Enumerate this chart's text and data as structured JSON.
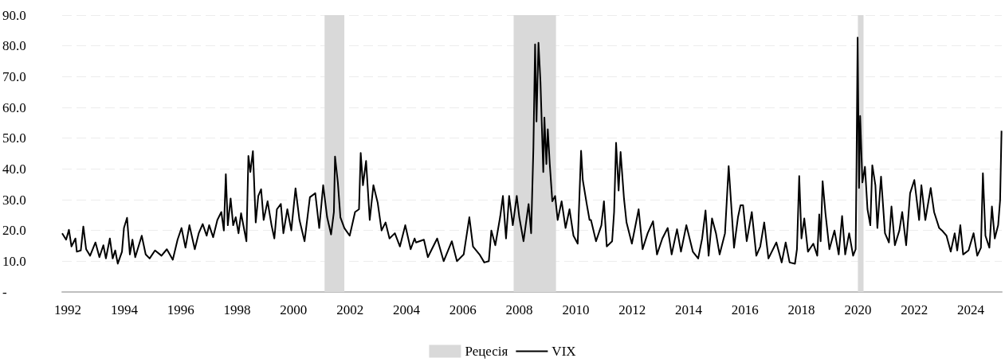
{
  "chart_data": {
    "type": "line",
    "x": [
      1991.8,
      1991.94,
      1992.04,
      1992.13,
      1992.27,
      1992.32,
      1992.46,
      1992.55,
      1992.65,
      1992.79,
      1992.98,
      1993.12,
      1993.26,
      1993.35,
      1993.49,
      1993.59,
      1993.68,
      1993.77,
      1993.92,
      1993.99,
      1994.1,
      1994.2,
      1994.29,
      1994.39,
      1994.62,
      1994.76,
      1994.9,
      1995.09,
      1995.32,
      1995.51,
      1995.72,
      1995.89,
      1996.03,
      1996.17,
      1996.31,
      1996.5,
      1996.64,
      1996.78,
      1996.92,
      1997.01,
      1997.15,
      1997.3,
      1997.44,
      1997.53,
      1997.6,
      1997.67,
      1997.77,
      1997.86,
      1997.95,
      1998.05,
      1998.14,
      1998.33,
      1998.4,
      1998.47,
      1998.56,
      1998.66,
      1998.75,
      1998.85,
      1998.94,
      1999.08,
      1999.22,
      1999.32,
      1999.41,
      1999.55,
      1999.64,
      1999.78,
      1999.92,
      2000.07,
      2000.21,
      2000.39,
      2000.58,
      2000.77,
      2000.91,
      2001.05,
      2001.19,
      2001.33,
      2001.43,
      2001.47,
      2001.57,
      2001.66,
      2001.8,
      2001.99,
      2002.18,
      2002.32,
      2002.38,
      2002.46,
      2002.57,
      2002.7,
      2002.83,
      2002.98,
      2003.12,
      2003.26,
      2003.4,
      2003.59,
      2003.77,
      2003.96,
      2004.15,
      2004.29,
      2004.34,
      2004.62,
      2004.76,
      2005.09,
      2005.32,
      2005.61,
      2005.79,
      2006.03,
      2006.23,
      2006.36,
      2006.59,
      2006.76,
      2006.92,
      2007.01,
      2007.15,
      2007.32,
      2007.42,
      2007.53,
      2007.64,
      2007.77,
      2007.91,
      2008.0,
      2008.15,
      2008.33,
      2008.42,
      2008.5,
      2008.56,
      2008.61,
      2008.68,
      2008.75,
      2008.85,
      2008.89,
      2008.96,
      2009.01,
      2009.08,
      2009.17,
      2009.27,
      2009.36,
      2009.5,
      2009.64,
      2009.78,
      2009.92,
      2010.07,
      2010.19,
      2010.25,
      2010.39,
      2010.49,
      2010.54,
      2010.72,
      2010.91,
      2011.0,
      2011.1,
      2011.29,
      2011.36,
      2011.43,
      2011.52,
      2011.59,
      2011.71,
      2011.8,
      2011.99,
      2012.23,
      2012.37,
      2012.55,
      2012.74,
      2012.88,
      2013.07,
      2013.26,
      2013.4,
      2013.59,
      2013.73,
      2013.92,
      2014.15,
      2014.34,
      2014.48,
      2014.6,
      2014.71,
      2014.83,
      2014.97,
      2015.1,
      2015.29,
      2015.42,
      2015.49,
      2015.61,
      2015.75,
      2015.84,
      2015.93,
      2016.06,
      2016.24,
      2016.4,
      2016.54,
      2016.68,
      2016.83,
      2017.11,
      2017.3,
      2017.44,
      2017.58,
      2017.77,
      2017.84,
      2017.92,
      2018.0,
      2018.1,
      2018.23,
      2018.42,
      2018.56,
      2018.63,
      2018.68,
      2018.75,
      2018.85,
      2018.99,
      2019.17,
      2019.32,
      2019.44,
      2019.55,
      2019.69,
      2019.83,
      2019.92,
      2019.95,
      2019.99,
      2020.04,
      2020.08,
      2020.16,
      2020.25,
      2020.34,
      2020.44,
      2020.51,
      2020.62,
      2020.69,
      2020.82,
      2020.96,
      2021.1,
      2021.19,
      2021.31,
      2021.47,
      2021.57,
      2021.71,
      2021.85,
      2022.0,
      2022.17,
      2022.25,
      2022.39,
      2022.58,
      2022.7,
      2022.88,
      2022.98,
      2023.14,
      2023.29,
      2023.43,
      2023.52,
      2023.63,
      2023.73,
      2023.92,
      2024.1,
      2024.23,
      2024.36,
      2024.43,
      2024.52,
      2024.66,
      2024.75,
      2024.85,
      2024.97,
      2025.04,
      2025.09
    ],
    "series": [
      {
        "name": "VIX",
        "color": "#000000",
        "values": [
          19.1,
          17.0,
          20.2,
          14.8,
          17.4,
          13.1,
          13.5,
          21.3,
          13.9,
          11.8,
          16.1,
          11.3,
          15.2,
          10.9,
          17.4,
          10.9,
          13.5,
          9.2,
          13.1,
          20.8,
          24.1,
          12.2,
          17.0,
          11.3,
          18.3,
          12.2,
          10.9,
          13.5,
          11.8,
          13.9,
          10.5,
          17.0,
          20.8,
          14.4,
          21.7,
          13.9,
          19.1,
          22.1,
          18.3,
          21.7,
          17.8,
          23.4,
          26.0,
          20.0,
          38.3,
          21.7,
          30.4,
          21.7,
          24.3,
          19.1,
          25.6,
          16.5,
          44.2,
          39.0,
          45.8,
          22.6,
          31.2,
          33.4,
          23.4,
          29.5,
          21.7,
          17.4,
          26.9,
          28.6,
          19.1,
          26.9,
          20.0,
          33.7,
          23.4,
          16.5,
          30.8,
          32.1,
          20.8,
          34.7,
          24.3,
          18.7,
          26.0,
          44.0,
          35.6,
          24.3,
          20.8,
          18.3,
          26.0,
          26.9,
          45.2,
          34.7,
          42.6,
          23.4,
          34.7,
          29.1,
          20.0,
          22.6,
          17.4,
          19.1,
          14.8,
          21.7,
          13.9,
          17.4,
          16.1,
          17.0,
          11.3,
          17.4,
          10.0,
          16.5,
          10.0,
          12.2,
          24.3,
          14.8,
          12.2,
          9.6,
          10.0,
          20.0,
          15.2,
          24.3,
          31.2,
          17.4,
          31.2,
          21.7,
          31.2,
          24.3,
          16.5,
          28.6,
          19.1,
          46.8,
          80.5,
          55.4,
          81.0,
          68.4,
          39.0,
          56.7,
          41.6,
          52.9,
          41.6,
          29.5,
          31.2,
          23.4,
          29.5,
          20.8,
          26.9,
          18.3,
          15.7,
          45.9,
          36.4,
          28.6,
          23.4,
          23.4,
          16.5,
          21.7,
          29.5,
          14.8,
          16.5,
          26.0,
          48.5,
          33.0,
          45.5,
          30.4,
          22.6,
          15.7,
          26.9,
          13.9,
          19.1,
          23.0,
          12.2,
          17.4,
          20.8,
          12.2,
          20.4,
          13.1,
          21.7,
          13.1,
          10.9,
          17.4,
          26.5,
          11.8,
          23.9,
          19.1,
          12.2,
          19.1,
          40.9,
          31.2,
          14.4,
          24.3,
          28.2,
          28.2,
          16.5,
          26.0,
          11.8,
          14.8,
          22.6,
          10.9,
          16.1,
          9.6,
          16.1,
          9.6,
          9.2,
          13.9,
          37.7,
          17.4,
          23.9,
          13.1,
          15.7,
          11.8,
          25.2,
          16.5,
          36.0,
          25.6,
          13.9,
          20.0,
          12.2,
          24.7,
          12.2,
          19.1,
          11.8,
          13.9,
          39.9,
          82.7,
          33.8,
          57.2,
          35.6,
          40.7,
          26.9,
          21.7,
          41.2,
          34.7,
          20.8,
          37.5,
          19.1,
          16.1,
          27.8,
          15.2,
          20.0,
          26.0,
          15.2,
          32.1,
          36.4,
          23.4,
          34.7,
          23.4,
          33.8,
          26.0,
          20.8,
          20.0,
          18.3,
          13.1,
          19.1,
          13.5,
          21.7,
          12.2,
          13.5,
          19.1,
          11.8,
          14.4,
          38.6,
          18.3,
          14.4,
          27.8,
          17.4,
          21.7,
          29.9,
          52.4
        ]
      }
    ],
    "bands": [
      {
        "axis": "x",
        "from": 2001.1,
        "to": 2001.8,
        "label": "Рецесія",
        "color": "#d9d9d9"
      },
      {
        "axis": "x",
        "from": 2007.8,
        "to": 2009.3,
        "color": "#d9d9d9"
      },
      {
        "axis": "x",
        "from": 2020.0,
        "to": 2020.2,
        "color": "#d9d9d9"
      }
    ],
    "xlim": [
      1991.8,
      2025.1
    ],
    "xticks": [
      1992,
      1994,
      1996,
      1998,
      2000,
      2002,
      2004,
      2006,
      2008,
      2010,
      2012,
      2014,
      2016,
      2018,
      2020,
      2022,
      2024
    ],
    "ylim": [
      0,
      90
    ],
    "yticks": [
      {
        "value": 0,
        "label": "-"
      },
      {
        "value": 10,
        "label": "10.0"
      },
      {
        "value": 20,
        "label": "20.0"
      },
      {
        "value": 30,
        "label": "30.0"
      },
      {
        "value": 40,
        "label": "40.0"
      },
      {
        "value": 50,
        "label": "50.0"
      },
      {
        "value": 60,
        "label": "60.0"
      },
      {
        "value": 70,
        "label": "70.0"
      },
      {
        "value": 80,
        "label": "80.0"
      },
      {
        "value": 90,
        "label": "90.0"
      }
    ],
    "grid": "y",
    "legend": "bottom",
    "marker": "none",
    "line_style": "solid"
  }
}
